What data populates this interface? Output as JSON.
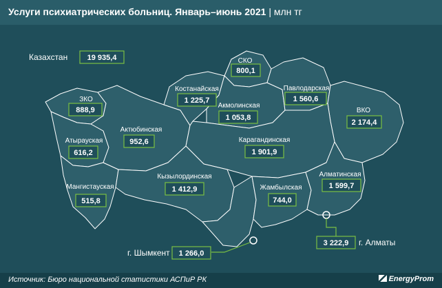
{
  "header": {
    "title": "Услуги психиатрических больниц. Январь–июнь 2021",
    "separator": "|",
    "unit": "млн тг"
  },
  "total": {
    "label": "Казахстан",
    "value": "19 935,4"
  },
  "regions": [
    {
      "id": "zko",
      "name": "ЗКО",
      "value": "888,9"
    },
    {
      "id": "atyrau",
      "name": "Атырауская",
      "value": "616,2"
    },
    {
      "id": "mangystau",
      "name": "Мангистауская",
      "value": "515,8"
    },
    {
      "id": "aktobe",
      "name": "Актюбинская",
      "value": "952,6"
    },
    {
      "id": "kostanay",
      "name": "Костанайская",
      "value": "1 225,7"
    },
    {
      "id": "sko",
      "name": "СКО",
      "value": "800,1"
    },
    {
      "id": "akmola",
      "name": "Акмолинская",
      "value": "1 053,8"
    },
    {
      "id": "pavlodar",
      "name": "Павлодарская",
      "value": "1 560,6"
    },
    {
      "id": "vko",
      "name": "ВКО",
      "value": "2 174,4"
    },
    {
      "id": "karaganda",
      "name": "Карагандинская",
      "value": "1 901,9"
    },
    {
      "id": "kyzylorda",
      "name": "Кызылординская",
      "value": "1 412,9"
    },
    {
      "id": "zhambyl",
      "name": "Жамбылская",
      "value": "744,0"
    },
    {
      "id": "almaty_obl",
      "name": "Алматинская",
      "value": "1 599,7"
    }
  ],
  "cities": [
    {
      "id": "shymkent",
      "name": "г. Шымкент",
      "value": "1 266,0"
    },
    {
      "id": "almaty",
      "name": "г. Алматы",
      "value": "3 222,9"
    }
  ],
  "footer": {
    "source": "Источник: Бюро национальной статистики АСПиР РК",
    "brand": "EnergyProm"
  },
  "colors": {
    "background": "#1f4e5a",
    "region_fill": "#2e5f6b",
    "border": "#ffffff",
    "box_border": "#7bc043",
    "leader": "#7bc043"
  }
}
